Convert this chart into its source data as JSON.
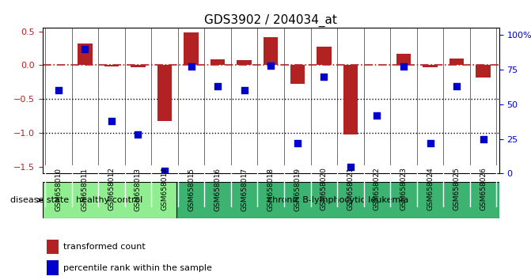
{
  "title": "GDS3902 / 204034_at",
  "samples": [
    "GSM658010",
    "GSM658011",
    "GSM658012",
    "GSM658013",
    "GSM658014",
    "GSM658015",
    "GSM658016",
    "GSM658017",
    "GSM658018",
    "GSM658019",
    "GSM658020",
    "GSM658021",
    "GSM658022",
    "GSM658023",
    "GSM658024",
    "GSM658025",
    "GSM658026"
  ],
  "red_bars": [
    0.0,
    0.32,
    -0.02,
    -0.03,
    -0.82,
    0.48,
    0.09,
    0.07,
    0.41,
    -0.28,
    0.28,
    -1.02,
    0.01,
    0.17,
    -0.03,
    0.1,
    -0.18
  ],
  "blue_dots": [
    60,
    90,
    38,
    28,
    2,
    77,
    63,
    60,
    78,
    22,
    70,
    5,
    42,
    77,
    22,
    63,
    25
  ],
  "ylim_left": [
    -1.6,
    0.55
  ],
  "ylim_right": [
    0,
    105
  ],
  "bar_color": "#b22222",
  "dot_color": "#0000cd",
  "hline_color": "#b22222",
  "hline_style": "-.",
  "dotted_lines": [
    -0.5,
    -1.0
  ],
  "group_boundary": 5,
  "group1_label": "healthy control",
  "group2_label": "chronic B-lymphocytic leukemia",
  "group1_color": "#90ee90",
  "group2_color": "#3cb371",
  "disease_state_label": "disease state",
  "legend_bar_label": "transformed count",
  "legend_dot_label": "percentile rank within the sample",
  "right_yticks": [
    0,
    25,
    50,
    75,
    100
  ],
  "right_yticklabels": [
    "0",
    "25",
    "50",
    "75",
    "100%"
  ],
  "left_yticks": [
    -1.5,
    -1.0,
    -0.5,
    0.0,
    0.5
  ],
  "bg_color": "#ffffff",
  "axes_bg": "#ffffff",
  "plot_bg": "#ffffff"
}
